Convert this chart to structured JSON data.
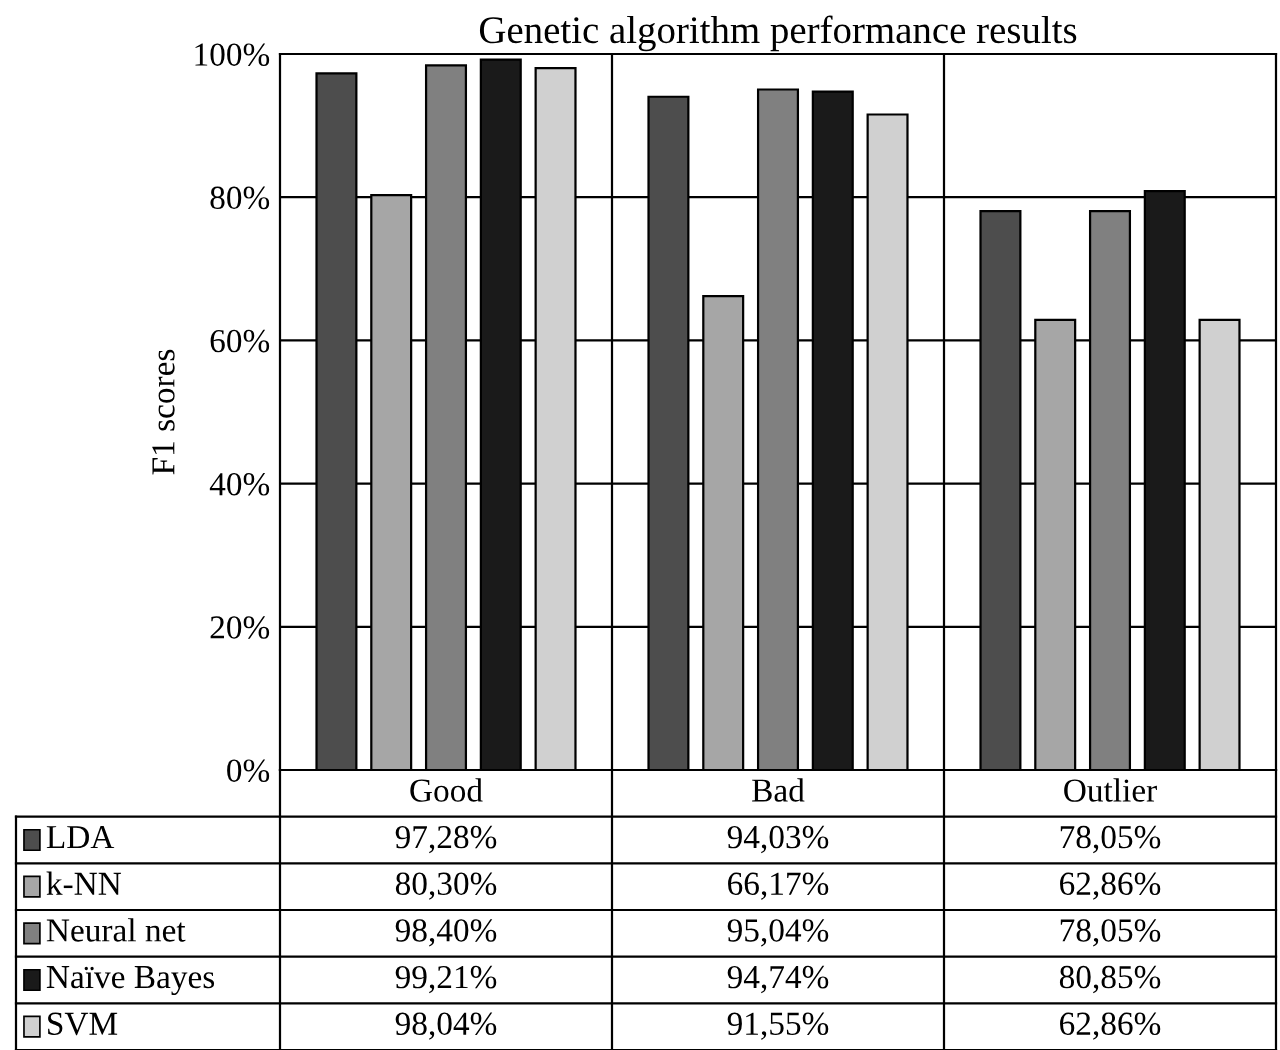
{
  "chart_data": {
    "type": "bar",
    "title": "Genetic algorithm performance results",
    "ylabel": "F1 scores",
    "categories": [
      "Good",
      "Bad",
      "Outlier"
    ],
    "series": [
      {
        "name": "LDA",
        "color": "#4d4d4d",
        "values": [
          97.28,
          94.03,
          78.05
        ],
        "value_labels": [
          "97,28%",
          "94,03%",
          "78,05%"
        ]
      },
      {
        "name": "k-NN",
        "color": "#a6a6a6",
        "values": [
          80.3,
          66.17,
          62.86
        ],
        "value_labels": [
          "80,30%",
          "66,17%",
          "62,86%"
        ]
      },
      {
        "name": "Neural net",
        "color": "#808080",
        "values": [
          98.4,
          95.04,
          78.05
        ],
        "value_labels": [
          "98,40%",
          "95,04%",
          "78,05%"
        ]
      },
      {
        "name": "Naïve Bayes",
        "color": "#1a1a1a",
        "values": [
          99.21,
          94.74,
          80.85
        ],
        "value_labels": [
          "99,21%",
          "94,74%",
          "80,85%"
        ]
      },
      {
        "name": "SVM",
        "color": "#d0d0d0",
        "values": [
          98.04,
          91.55,
          62.86
        ],
        "value_labels": [
          "98,04%",
          "91,55%",
          "62,86%"
        ]
      }
    ],
    "ylim": [
      0,
      100
    ],
    "yticks": [
      {
        "value": 0,
        "label": "0%"
      },
      {
        "value": 20,
        "label": "20%"
      },
      {
        "value": 40,
        "label": "40%"
      },
      {
        "value": 60,
        "label": "60%"
      },
      {
        "value": 80,
        "label": "80%"
      },
      {
        "value": 100,
        "label": "100%"
      }
    ],
    "grid": "y",
    "legend": "bottom"
  }
}
